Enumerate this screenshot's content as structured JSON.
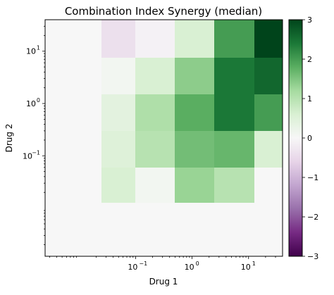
{
  "chart_data": {
    "type": "heatmap",
    "title": "Combination Index Synergy (median)",
    "xlabel": "Drug 1",
    "ylabel": "Drug 2",
    "x_scale": "log",
    "y_scale": "log",
    "x_ticks": [
      {
        "value": 0.1,
        "base": "10",
        "exp": "−1"
      },
      {
        "value": 1,
        "base": "10",
        "exp": "0"
      },
      {
        "value": 10,
        "base": "10",
        "exp": "1"
      }
    ],
    "y_ticks": [
      {
        "value": 0.1,
        "base": "10",
        "exp": "−1"
      },
      {
        "value": 1,
        "base": "10",
        "exp": "0"
      },
      {
        "value": 10,
        "base": "10",
        "exp": "1"
      }
    ],
    "x_edges": [
      0.0025,
      0.025,
      0.1,
      0.5,
      2.5,
      12.5,
      40
    ],
    "y_edges": [
      0.0012,
      0.0125,
      0.06,
      0.3,
      1.5,
      7.5,
      40
    ],
    "cells": [
      [
        0,
        0,
        0,
        0,
        0,
        0
      ],
      [
        0,
        0.6,
        0.1,
        1.3,
        1.0,
        0
      ],
      [
        0,
        0.5,
        1.0,
        1.6,
        1.7,
        0.6
      ],
      [
        0,
        0.4,
        1.1,
        1.8,
        2.4,
        2.0
      ],
      [
        0,
        0.1,
        0.6,
        1.4,
        2.4,
        2.6
      ],
      [
        0,
        -0.4,
        -0.1,
        0.6,
        2.0,
        3.0
      ]
    ],
    "colorbar": {
      "cmap": "PRGn",
      "vmin": -3,
      "vmax": 3,
      "ticks": [
        "3",
        "2",
        "1",
        "0",
        "−1",
        "−2",
        "−3"
      ],
      "tick_values": [
        3,
        2,
        1,
        0,
        -1,
        -2,
        -3
      ]
    }
  }
}
